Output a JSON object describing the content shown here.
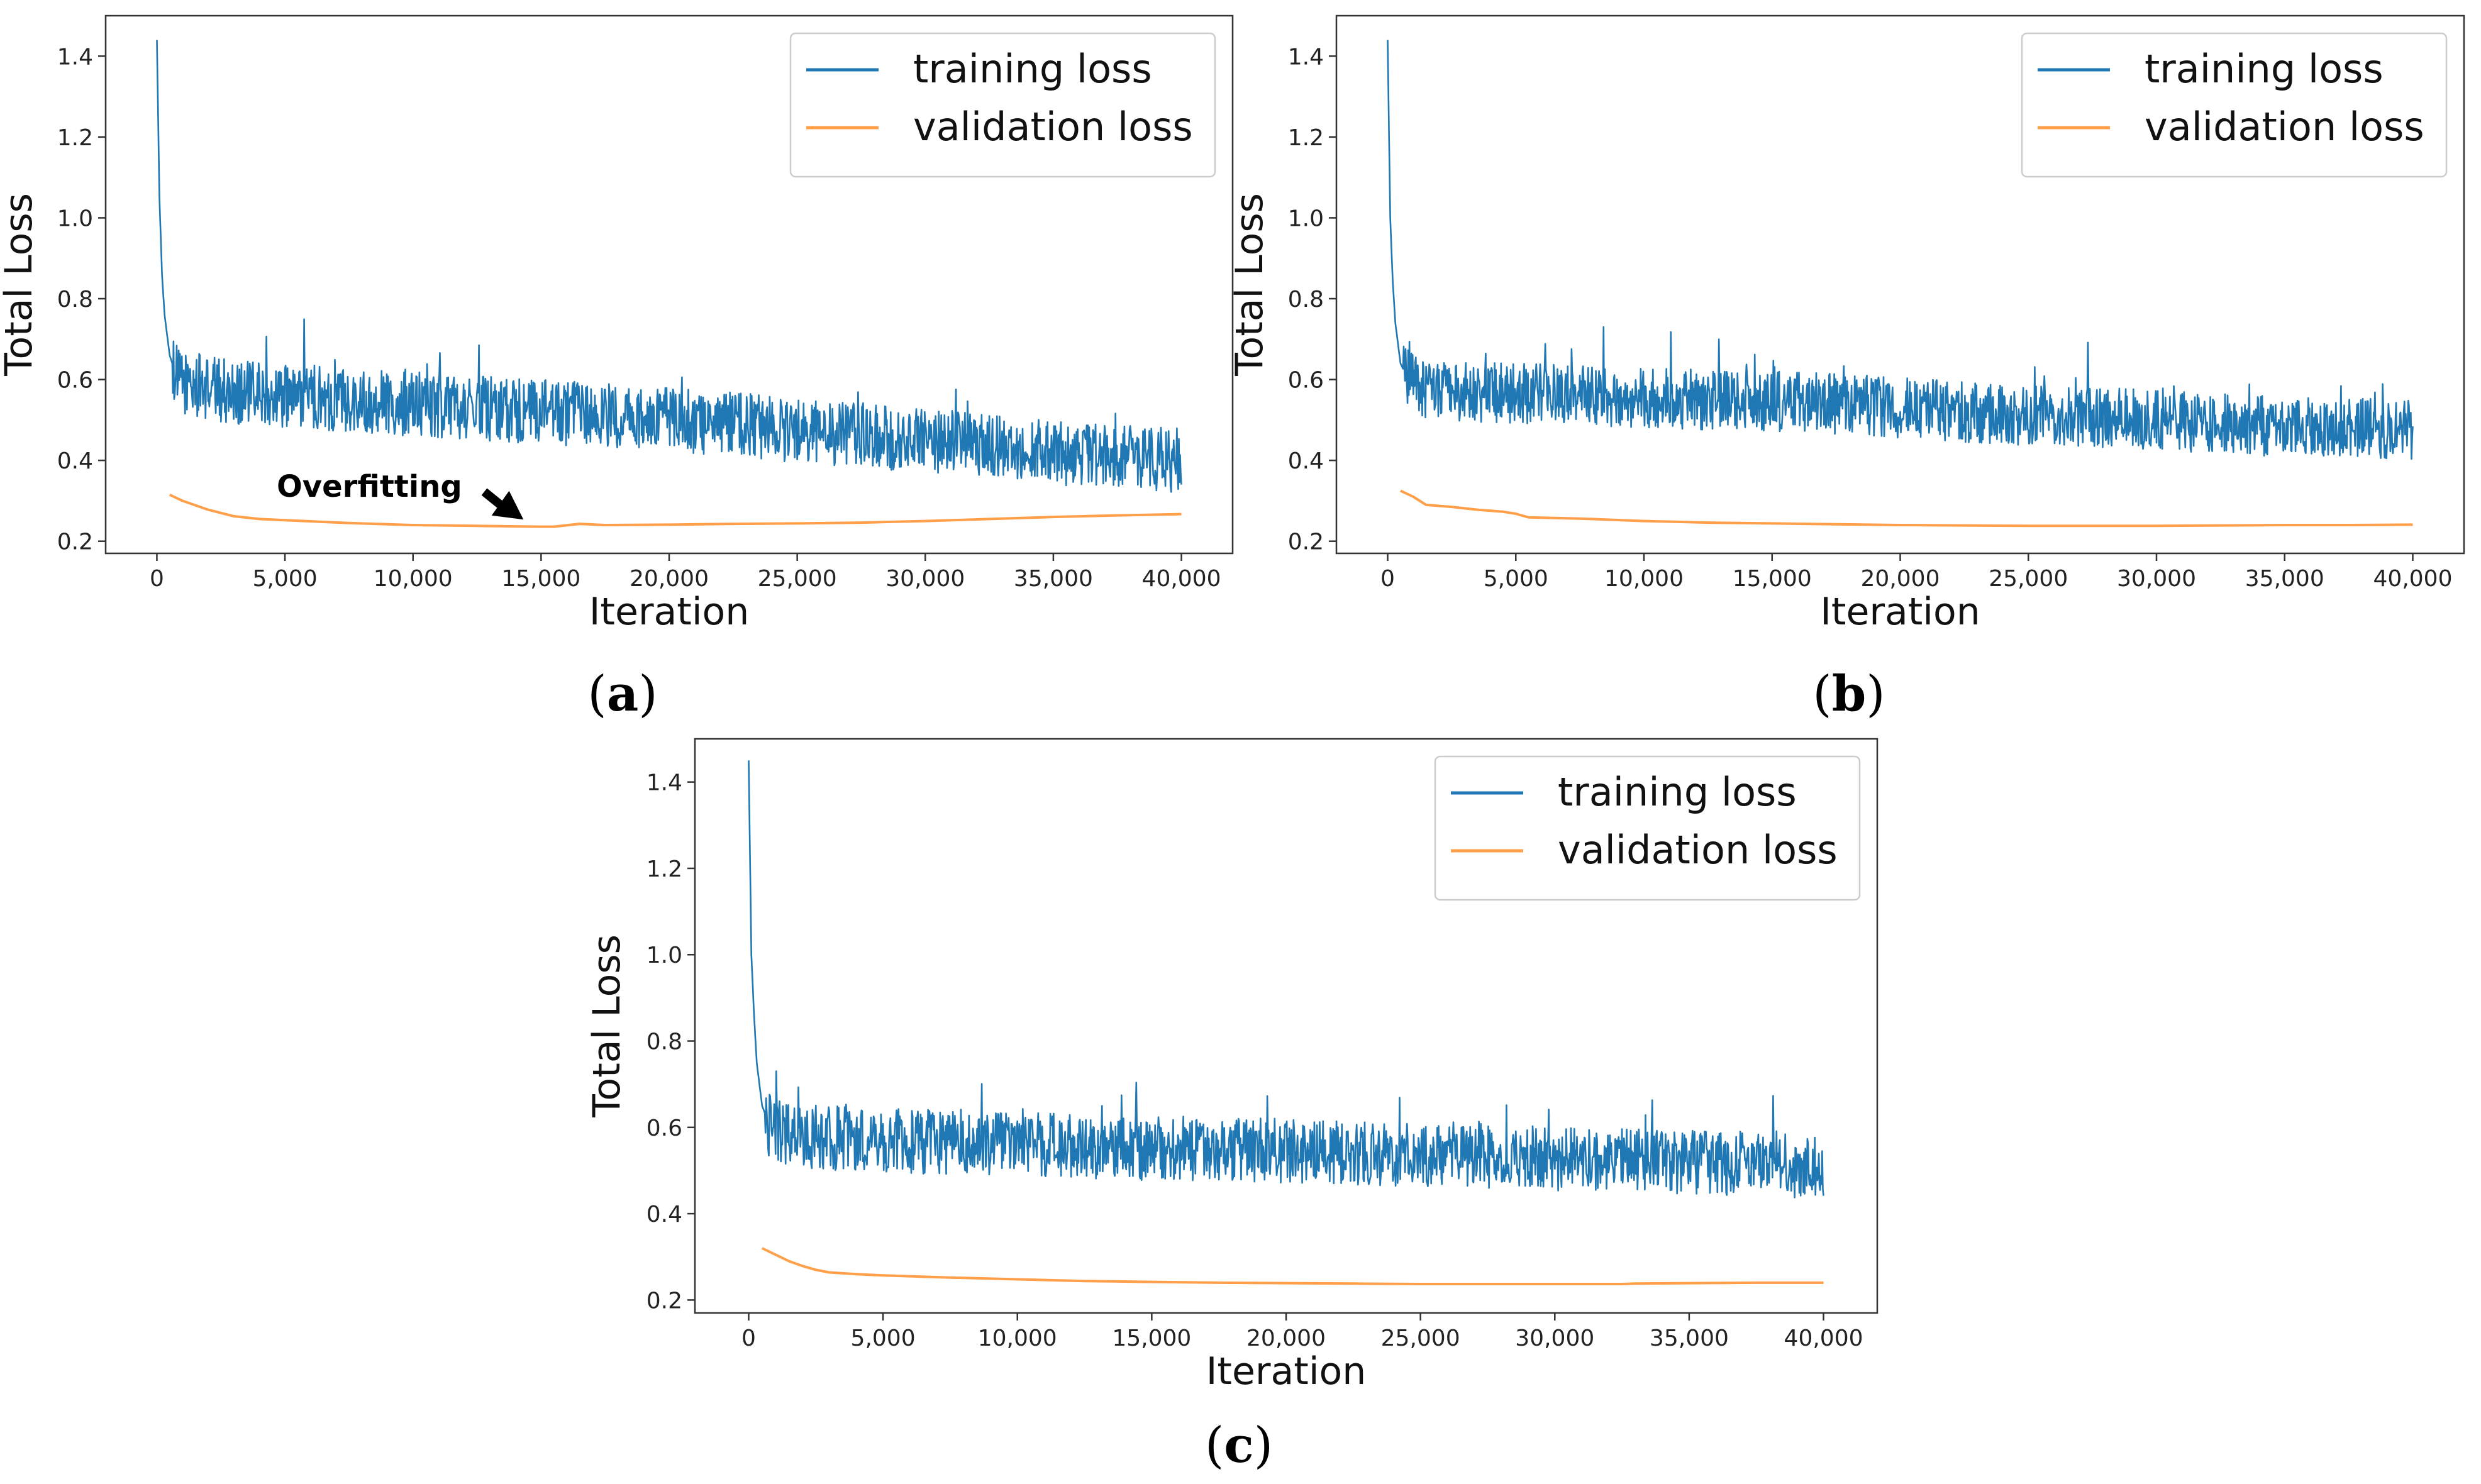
{
  "figure": {
    "panels": [
      {
        "id": "a",
        "label_open": "(",
        "label_letter": "a",
        "label_close": ")"
      },
      {
        "id": "b",
        "label_open": "(",
        "label_letter": "b",
        "label_close": ")"
      },
      {
        "id": "c",
        "label_open": "(",
        "label_letter": "c",
        "label_close": ")"
      }
    ]
  },
  "colors": {
    "training": "#1f77b4",
    "validation": "#ff9f4a",
    "axes": "#333333",
    "legend_border": "#cccccc"
  },
  "chart_data": [
    {
      "panel": "a",
      "type": "line",
      "xlabel": "Iteration",
      "ylabel": "Total Loss",
      "xlim": [
        -2000,
        42000
      ],
      "ylim": [
        0.17,
        1.5
      ],
      "xticks": [
        0,
        5000,
        10000,
        15000,
        20000,
        25000,
        30000,
        35000,
        40000
      ],
      "xtick_labels": [
        "0",
        "5,000",
        "10,000",
        "15,000",
        "20,000",
        "25,000",
        "30,000",
        "35,000",
        "40,000"
      ],
      "yticks": [
        0.2,
        0.4,
        0.6,
        0.8,
        1.0,
        1.2,
        1.4
      ],
      "ytick_labels": [
        "0.2",
        "0.4",
        "0.6",
        "0.8",
        "1.0",
        "1.2",
        "1.4"
      ],
      "legend": {
        "position": "top-right",
        "entries": [
          "training loss",
          "validation loss"
        ]
      },
      "annotation": {
        "text": "Overfitting",
        "points_to": [
          15000,
          0.235
        ]
      },
      "series": [
        {
          "name": "training loss",
          "x": [
            0,
            100,
            200,
            300,
            500,
            800,
            1200,
            2000,
            3000,
            5000,
            7500,
            10000,
            12500,
            15000,
            17500,
            20000,
            22500,
            25000,
            27500,
            30000,
            32500,
            35000,
            37500,
            40000
          ],
          "y": [
            1.44,
            1.05,
            0.86,
            0.76,
            0.66,
            0.6,
            0.59,
            0.58,
            0.57,
            0.56,
            0.55,
            0.54,
            0.53,
            0.52,
            0.51,
            0.5,
            0.49,
            0.47,
            0.46,
            0.45,
            0.44,
            0.42,
            0.41,
            0.4
          ],
          "noise_amplitude": 0.08
        },
        {
          "name": "validation loss",
          "x": [
            500,
            1000,
            2000,
            3000,
            4000,
            5000,
            7500,
            10000,
            12500,
            15000,
            15500,
            16500,
            17500,
            20000,
            22500,
            25000,
            27500,
            30000,
            32500,
            35000,
            37500,
            40000
          ],
          "y": [
            0.315,
            0.3,
            0.278,
            0.262,
            0.255,
            0.252,
            0.245,
            0.24,
            0.238,
            0.236,
            0.236,
            0.243,
            0.24,
            0.241,
            0.243,
            0.244,
            0.246,
            0.25,
            0.255,
            0.26,
            0.264,
            0.267
          ]
        }
      ]
    },
    {
      "panel": "b",
      "type": "line",
      "xlabel": "Iteration",
      "ylabel": "Total Loss",
      "xlim": [
        -2000,
        42000
      ],
      "ylim": [
        0.17,
        1.5
      ],
      "xticks": [
        0,
        5000,
        10000,
        15000,
        20000,
        25000,
        30000,
        35000,
        40000
      ],
      "xtick_labels": [
        "0",
        "5,000",
        "10,000",
        "15,000",
        "20,000",
        "25,000",
        "30,000",
        "35,000",
        "40,000"
      ],
      "yticks": [
        0.2,
        0.4,
        0.6,
        0.8,
        1.0,
        1.2,
        1.4
      ],
      "ytick_labels": [
        "0.2",
        "0.4",
        "0.6",
        "0.8",
        "1.0",
        "1.2",
        "1.4"
      ],
      "legend": {
        "position": "top-right",
        "entries": [
          "training loss",
          "validation loss"
        ]
      },
      "series": [
        {
          "name": "training loss",
          "x": [
            0,
            100,
            200,
            300,
            500,
            800,
            1200,
            2000,
            3000,
            5000,
            7500,
            10000,
            12500,
            15000,
            17500,
            20000,
            22500,
            25000,
            27500,
            30000,
            32500,
            35000,
            37500,
            40000
          ],
          "y": [
            1.44,
            1.0,
            0.84,
            0.74,
            0.64,
            0.6,
            0.58,
            0.575,
            0.57,
            0.565,
            0.56,
            0.555,
            0.55,
            0.545,
            0.54,
            0.53,
            0.52,
            0.51,
            0.505,
            0.5,
            0.49,
            0.485,
            0.48,
            0.475
          ],
          "noise_amplitude": 0.075
        },
        {
          "name": "validation loss",
          "x": [
            500,
            1000,
            1500,
            2500,
            3500,
            4500,
            5000,
            5500,
            7500,
            10000,
            12500,
            15000,
            17500,
            20000,
            22500,
            25000,
            27500,
            30000,
            32500,
            35000,
            37500,
            40000
          ],
          "y": [
            0.325,
            0.31,
            0.29,
            0.285,
            0.278,
            0.273,
            0.268,
            0.259,
            0.256,
            0.25,
            0.246,
            0.244,
            0.242,
            0.24,
            0.239,
            0.238,
            0.238,
            0.238,
            0.239,
            0.24,
            0.24,
            0.241
          ]
        }
      ]
    },
    {
      "panel": "c",
      "type": "line",
      "xlabel": "Iteration",
      "ylabel": "Total Loss",
      "xlim": [
        -2000,
        42000
      ],
      "ylim": [
        0.17,
        1.5
      ],
      "xticks": [
        0,
        5000,
        10000,
        15000,
        20000,
        25000,
        30000,
        35000,
        40000
      ],
      "xtick_labels": [
        "0",
        "5,000",
        "10,000",
        "15,000",
        "20,000",
        "25,000",
        "30,000",
        "35,000",
        "40,000"
      ],
      "yticks": [
        0.2,
        0.4,
        0.6,
        0.8,
        1.0,
        1.2,
        1.4
      ],
      "ytick_labels": [
        "0.2",
        "0.4",
        "0.6",
        "0.8",
        "1.0",
        "1.2",
        "1.4"
      ],
      "legend": {
        "position": "top-right",
        "entries": [
          "training loss",
          "validation loss"
        ]
      },
      "series": [
        {
          "name": "training loss",
          "x": [
            0,
            100,
            200,
            300,
            500,
            800,
            1200,
            2000,
            3000,
            5000,
            7500,
            10000,
            12500,
            15000,
            17500,
            20000,
            22500,
            25000,
            27500,
            30000,
            32500,
            35000,
            37500,
            40000
          ],
          "y": [
            1.45,
            1.0,
            0.86,
            0.75,
            0.65,
            0.6,
            0.585,
            0.58,
            0.575,
            0.57,
            0.565,
            0.56,
            0.555,
            0.55,
            0.548,
            0.545,
            0.54,
            0.535,
            0.53,
            0.528,
            0.525,
            0.52,
            0.515,
            0.51
          ],
          "noise_amplitude": 0.075
        },
        {
          "name": "validation loss",
          "x": [
            500,
            1000,
            1500,
            2000,
            2500,
            3000,
            4000,
            5000,
            7500,
            10000,
            12500,
            15000,
            17500,
            20000,
            22500,
            25000,
            27500,
            30000,
            32500,
            33000,
            35000,
            37500,
            40000
          ],
          "y": [
            0.32,
            0.305,
            0.29,
            0.279,
            0.27,
            0.264,
            0.26,
            0.257,
            0.252,
            0.248,
            0.244,
            0.242,
            0.24,
            0.239,
            0.238,
            0.237,
            0.237,
            0.237,
            0.237,
            0.238,
            0.239,
            0.24,
            0.24
          ]
        }
      ]
    }
  ]
}
